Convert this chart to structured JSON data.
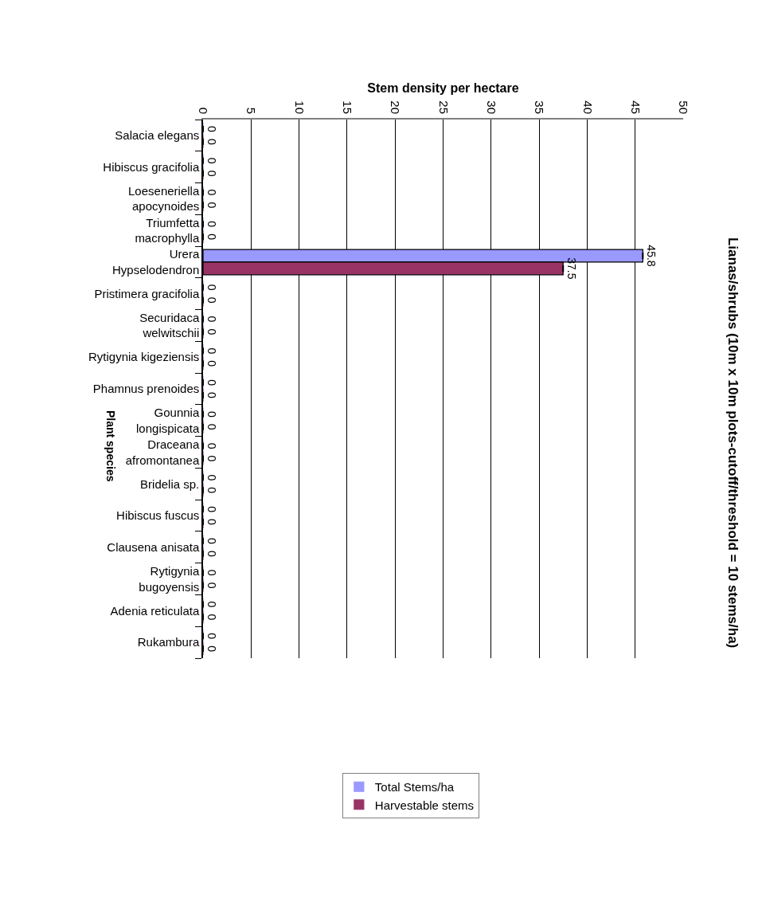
{
  "chart_data": {
    "type": "bar",
    "orientation": "horizontal",
    "title": "Lianas/shrubs (10m x 10m plots-cutoff/threshold = 10 stems/ha)",
    "xlabel": "Stem density per hectare",
    "ylabel": "Plant species",
    "categories": [
      "Salacia elegans",
      "Hibiscus gracifolia",
      "Loeseneriella\napocynoides",
      "Triumfetta\nmacrophylla",
      "Urera\nHypselodendron",
      "Pristimera gracifolia",
      "Securidaca\nwelwitschii",
      "Rytigynia kigeziensis",
      "Phamnus prenoides",
      "Gounnia\nlongispicata",
      "Draceana\nafromontanea",
      "Bridelia sp.",
      "Hibiscus fuscus",
      "Clausena anisata",
      "Rytigynia\nbugoyensis",
      "Adenia reticulata",
      "Rukambura"
    ],
    "series": [
      {
        "name": "Total Stems/ha",
        "color": "#9999ff",
        "values": [
          0,
          0,
          0,
          0,
          45.8,
          0,
          0,
          0,
          0,
          0,
          0,
          0,
          0,
          0,
          0,
          0,
          0
        ],
        "errors": [
          0,
          0,
          0,
          0,
          0,
          0,
          0,
          0,
          0,
          0,
          0,
          0,
          0,
          0,
          0,
          0,
          0
        ]
      },
      {
        "name": "Harvestable stems",
        "color": "#993366",
        "values": [
          0,
          0,
          0,
          0,
          37.5,
          0,
          0,
          0,
          0,
          0,
          0,
          0,
          0,
          0,
          0,
          0,
          0
        ],
        "errors": [
          0,
          0,
          0,
          0,
          0,
          0,
          0,
          0,
          0,
          0,
          0,
          0,
          0,
          0,
          0,
          0,
          0
        ]
      }
    ],
    "xlim": [
      0,
      50
    ],
    "xticks": [
      0,
      5,
      10,
      15,
      20,
      25,
      30,
      35,
      40,
      45,
      50
    ],
    "grid": "x",
    "legend": "bottom",
    "data_labels": true
  }
}
